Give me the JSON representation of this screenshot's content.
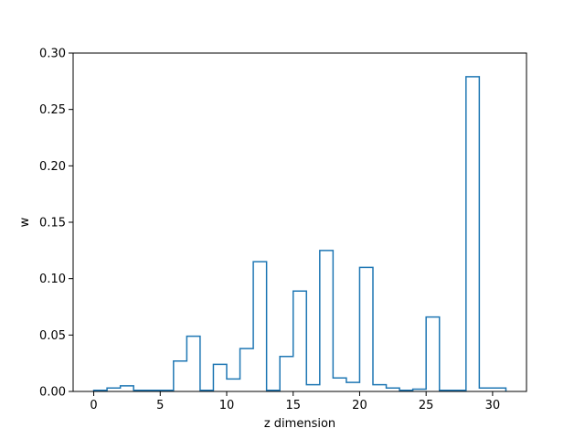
{
  "chart_data": {
    "type": "step",
    "xlabel": "z dimension",
    "ylabel": "w",
    "xlim": [
      -1.55,
      32.55
    ],
    "ylim": [
      0,
      0.3
    ],
    "xticks": [
      0,
      5,
      10,
      15,
      20,
      25,
      30
    ],
    "yticks": [
      0.0,
      0.05,
      0.1,
      0.15,
      0.2,
      0.25,
      0.3
    ],
    "ytick_labels": [
      "0.00",
      "0.05",
      "0.10",
      "0.15",
      "0.20",
      "0.25",
      "0.30"
    ],
    "line_color": "#1f77b4",
    "grid": false,
    "series": [
      {
        "bin_edges": [
          0,
          1,
          2,
          3,
          4,
          5,
          6,
          7,
          8,
          9,
          10,
          11,
          12,
          13,
          14,
          15,
          16,
          17,
          18,
          19,
          20,
          21,
          22,
          23,
          24,
          25,
          26,
          27,
          28,
          29,
          30,
          31
        ],
        "values": [
          0.001,
          0.003,
          0.005,
          0.001,
          0.001,
          0.001,
          0.027,
          0.049,
          0.001,
          0.024,
          0.011,
          0.038,
          0.115,
          0.001,
          0.031,
          0.089,
          0.006,
          0.125,
          0.012,
          0.008,
          0.11,
          0.006,
          0.003,
          0.001,
          0.002,
          0.066,
          0.001,
          0.001,
          0.279,
          0.003,
          0.003
        ]
      }
    ]
  }
}
